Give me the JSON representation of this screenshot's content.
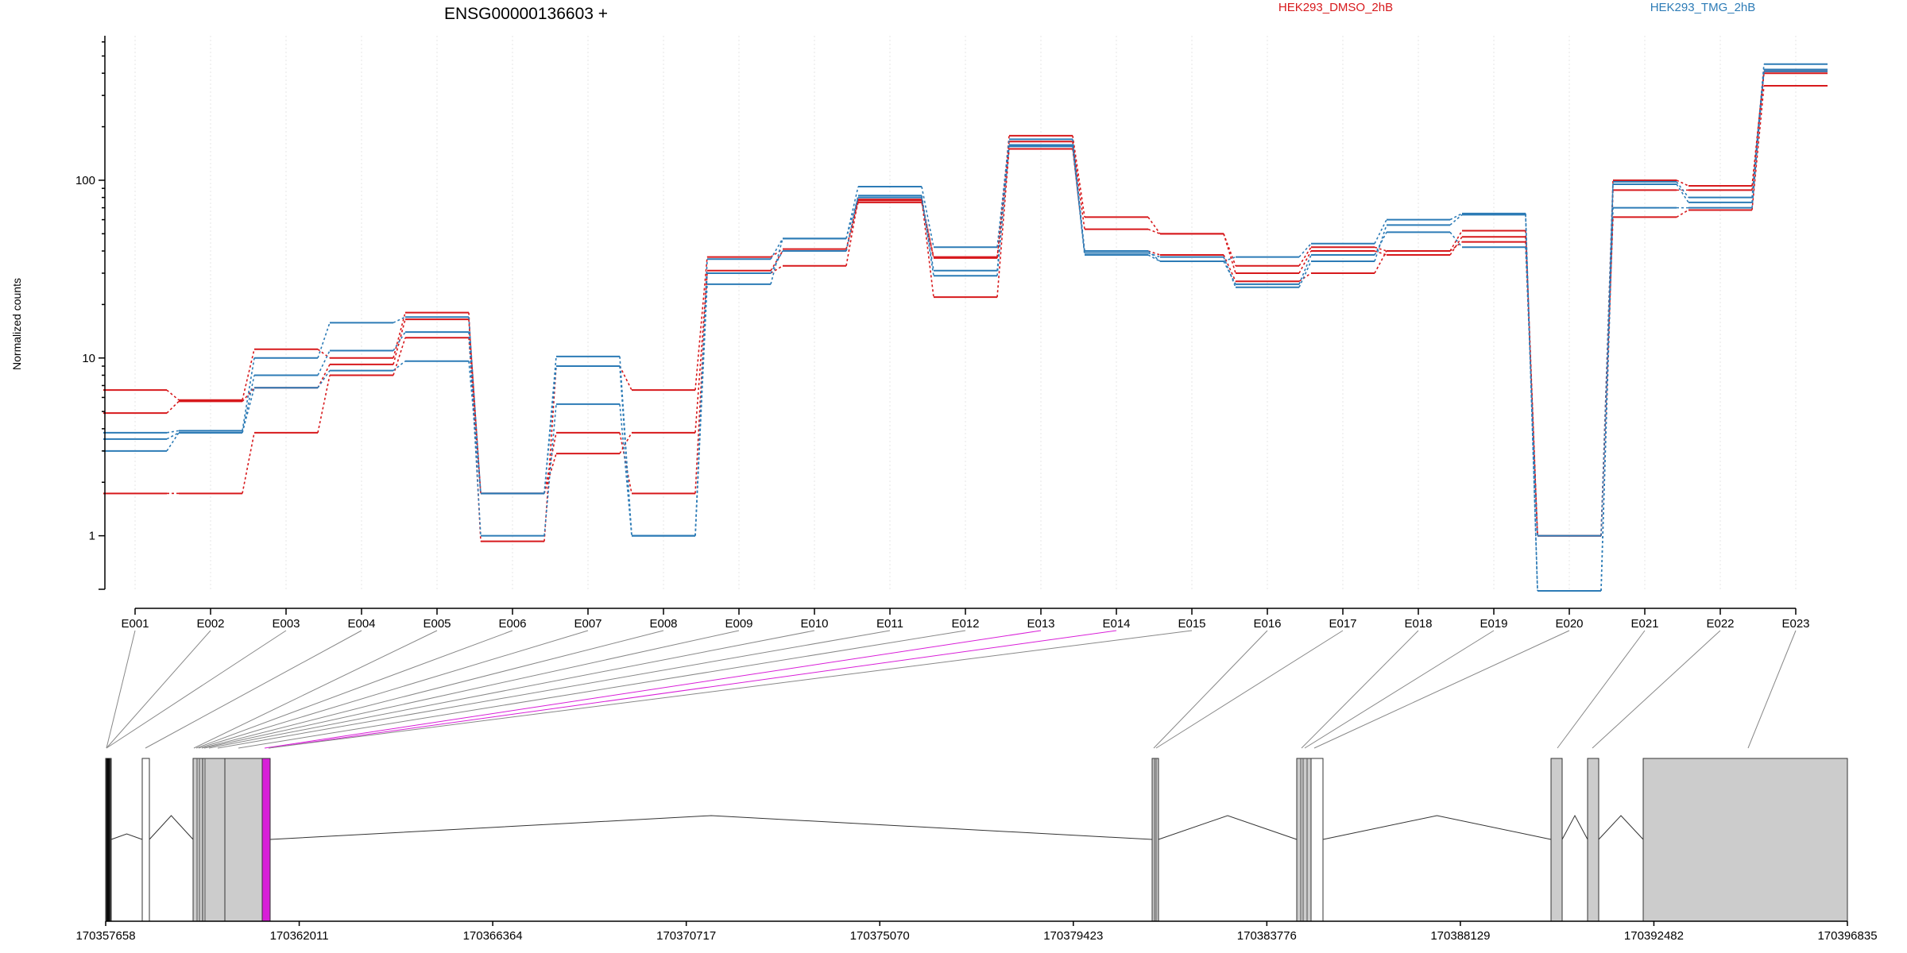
{
  "chart_data": {
    "type": "line",
    "title": "ENSG00000136603 +",
    "ylabel": "Normalized counts",
    "xlabel": "",
    "y_scale": "log",
    "ylim": [
      0.5,
      650
    ],
    "y_ticks": [
      1,
      10,
      100
    ],
    "y_tick_labels": [
      "1",
      "10",
      "100"
    ],
    "grid": "vertical dotted",
    "legend": [
      {
        "name": "HEK293_DMSO_2hB",
        "color": "#d7191c",
        "placement": "top-center"
      },
      {
        "name": "HEK293_TMG_2hB",
        "color": "#2c7bb6",
        "placement": "top-right"
      }
    ],
    "categories": [
      "E001",
      "E002",
      "E003",
      "E004",
      "E005",
      "E006",
      "E007",
      "E008",
      "E009",
      "E010",
      "E011",
      "E012",
      "E013",
      "E014",
      "E015",
      "E016",
      "E017",
      "E018",
      "E019",
      "E020",
      "E021",
      "E022",
      "E023"
    ],
    "series": [
      {
        "color": "#d7191c",
        "values": [
          6.6,
          5.8,
          11.2,
          10.0,
          18.0,
          0.93,
          9.0,
          6.6,
          37,
          41,
          77,
          37,
          178,
          62,
          50,
          33,
          42,
          40,
          52,
          1.0,
          100,
          93,
          410
        ]
      },
      {
        "color": "#d7191c",
        "values": [
          4.9,
          5.7,
          6.8,
          9.2,
          16.5,
          1.73,
          3.8,
          1.73,
          31,
          40,
          75,
          36.5,
          165,
          53,
          50,
          30,
          40,
          38,
          48,
          1.0,
          88,
          88,
          400
        ]
      },
      {
        "color": "#d7191c",
        "values": [
          1.73,
          1.73,
          3.8,
          8.0,
          13.0,
          1.73,
          2.9,
          3.8,
          30,
          33,
          78,
          22,
          150,
          40,
          38,
          27,
          30,
          40,
          45,
          1.0,
          62,
          68,
          340
        ]
      },
      {
        "color": "#2c7bb6",
        "values": [
          3.8,
          3.9,
          10.0,
          15.8,
          17.0,
          1.73,
          10.2,
          1.0,
          36,
          47,
          92,
          42,
          170,
          40,
          35,
          37,
          44,
          60,
          65,
          0.49,
          98,
          80,
          450
        ]
      },
      {
        "color": "#2c7bb6",
        "values": [
          3.0,
          3.8,
          8.0,
          11.0,
          14.0,
          1.0,
          5.5,
          1.0,
          26,
          47,
          80,
          29,
          158,
          39,
          37,
          25,
          35,
          56,
          64,
          0.49,
          70,
          70,
          420
        ]
      },
      {
        "color": "#2c7bb6",
        "values": [
          3.5,
          3.8,
          6.8,
          8.5,
          9.6,
          1.73,
          9.0,
          1.0,
          30,
          40,
          82,
          31,
          155,
          38,
          35,
          26,
          38,
          51,
          42,
          1.0,
          95,
          75,
          410
        ]
      }
    ],
    "genomic_axis": {
      "range": [
        170357658,
        170396835
      ],
      "tick_labels": [
        "170357658",
        "170362011",
        "170366364",
        "170370717",
        "170375070",
        "170379423",
        "170383776",
        "170388129",
        "170392482",
        "170396835"
      ]
    },
    "exon_highlight_color": "#d81ed8"
  }
}
